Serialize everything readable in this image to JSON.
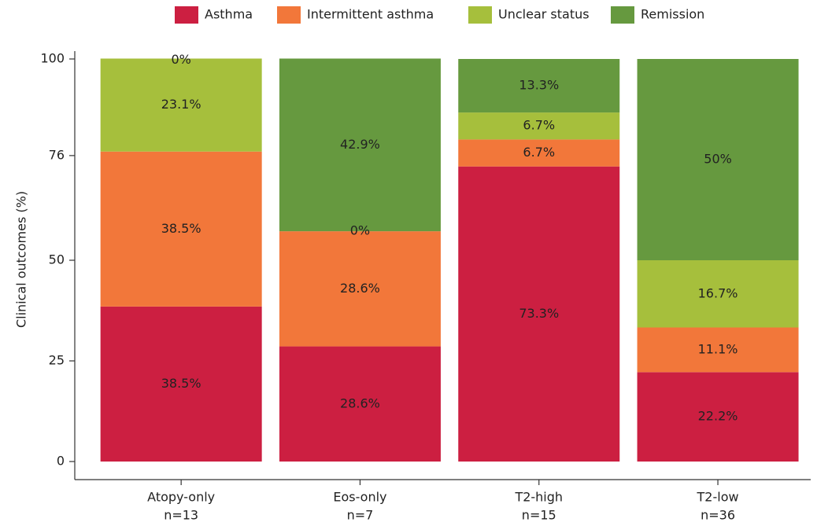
{
  "chart_data": {
    "type": "stacked-bar",
    "y_label": "Clinical outcomes (%)",
    "categories": [
      "Atopy-only",
      "Eos-only",
      "T2-high",
      "T2-low"
    ],
    "sample_sizes": [
      "n=13",
      "n=7",
      "n=15",
      "n=36"
    ],
    "ylim": [
      0,
      100
    ],
    "yticks": [
      0,
      25,
      50,
      76,
      100
    ],
    "legend": "top",
    "series": [
      {
        "name": "Asthma",
        "color": "#cc1f41",
        "values": [
          38.5,
          28.6,
          73.3,
          22.2
        ],
        "value_labels": [
          "38.5%",
          "28.6%",
          "73.3%",
          "22.2%"
        ]
      },
      {
        "name": "Intermittent asthma",
        "color": "#f2773a",
        "values": [
          38.5,
          28.6,
          6.7,
          11.1
        ],
        "value_labels": [
          "38.5%",
          "28.6%",
          "6.7%",
          "11.1%"
        ]
      },
      {
        "name": "Unclear status",
        "color": "#a6bf3c",
        "values": [
          23.1,
          0,
          6.7,
          16.7
        ],
        "value_labels": [
          "23.1%",
          "0%",
          "6.7%",
          "16.7%"
        ]
      },
      {
        "name": "Remission",
        "color": "#66993f",
        "values": [
          0,
          42.9,
          13.3,
          50
        ],
        "value_labels": [
          "0%",
          "42.9%",
          "13.3%",
          "50%"
        ]
      }
    ]
  }
}
